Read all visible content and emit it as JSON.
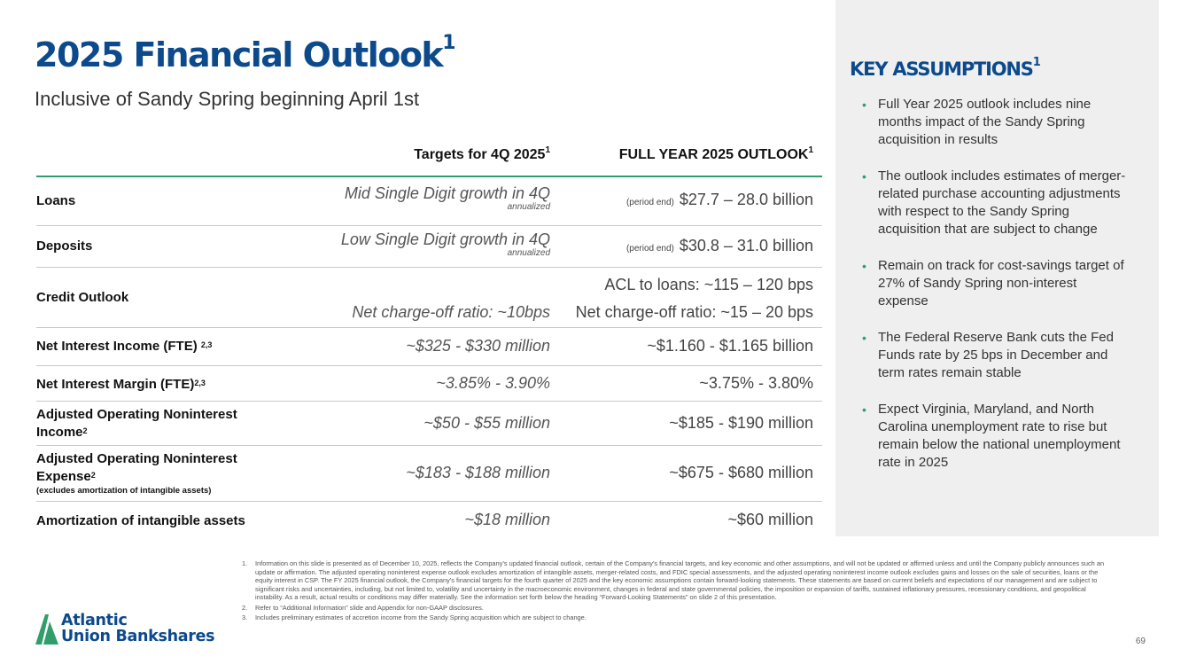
{
  "slide": {
    "title": "2025 Financial Outlook",
    "title_sup": "1",
    "subtitle": "Inclusive of Sandy Spring beginning April 1st",
    "page_number": "69"
  },
  "table": {
    "col_targets": "Targets for 4Q 2025",
    "col_targets_sup": "1",
    "col_full": "FULL YEAR 2025 OUTLOOK",
    "col_full_sup": "1",
    "rows": [
      {
        "label": "Loans",
        "target": "Mid Single Digit growth in 4Q",
        "target_note": "annualized",
        "full_prefix": "(period end)",
        "full": "$27.7 – 28.0 billion"
      },
      {
        "label": "Deposits",
        "target": "Low Single Digit growth in 4Q",
        "target_note": "annualized",
        "full_prefix": "(period end)",
        "full": "$30.8 – 31.0 billion"
      },
      {
        "label": "Credit Outlook",
        "target": "Net charge-off ratio: ~10bps",
        "full_line1": "ACL to loans:  ~115 – 120 bps",
        "full_line2": "Net charge-off ratio: ~15 – 20 bps"
      },
      {
        "label": "Net Interest Income (FTE)",
        "label_sup": "2,3",
        "target": "~$325 - $330 million",
        "full": "~$1.160 - $1.165 billion"
      },
      {
        "label": "Net Interest Margin (FTE)",
        "label_sup": "2,3",
        "target": "~3.85% - 3.90%",
        "full": "~3.75% - 3.80%"
      },
      {
        "label_line1": "Adjusted Operating Noninterest",
        "label_line2": "Income",
        "label_sup": "2",
        "target": "~$50 - $55 million",
        "full": "~$185 - $190 million"
      },
      {
        "label_line1": "Adjusted Operating Noninterest",
        "label_line2": "Expense",
        "label_sup": "2",
        "label_note": "(excludes amortization of intangible assets)",
        "target": "~$183 - $188 million",
        "full": "~$675 - $680 million"
      },
      {
        "label": "Amortization of intangible assets",
        "target": "~$18 million",
        "full": "~$60 million"
      }
    ]
  },
  "sidebar": {
    "title": "KEY ASSUMPTIONS",
    "title_sup": "1",
    "bullet_glyph": "•",
    "bullets": [
      "Full Year 2025 outlook includes nine months impact of the Sandy Spring acquisition in results",
      "The outlook includes estimates of merger-related purchase accounting adjustments with respect to the Sandy Spring acquisition that are subject to change",
      "Remain on track for cost-savings target of 27% of Sandy Spring non-interest expense",
      "The Federal Reserve Bank cuts the Fed Funds rate by 25 bps in December and term rates remain stable",
      "Expect Virginia, Maryland, and North Carolina unemployment rate to rise but remain below the national unemployment rate in 2025"
    ]
  },
  "logo": {
    "line1": "Atlantic",
    "line2": "Union Bankshares"
  },
  "footnotes": [
    {
      "num": "1.",
      "text": "Information on this slide is presented as of December 10, 2025, reflects the Company’s updated financial outlook, certain of the Company’s financial targets, and key economic and other assumptions, and will not be updated or affirmed unless and until the Company publicly announces such an update or affirmation. The adjusted operating noninterest expense outlook excludes amortization of intangible assets, merger-related costs, and FDIC special assessments, and the adjusted operating noninterest income outlook excludes gains and losses on the sale of securities, loans or the equity interest in CSP.  The FY 2025 financial outlook, the Company’s financial targets for the fourth quarter of 2025 and the key economic assumptions contain forward-looking statements. These statements are based on current beliefs and expectations of our management and are subject to significant risks and uncertainties, including, but not limited to, volatility and uncertainty in the macroeconomic environment, changes in federal and state governmental policies, the imposition or expansion of tariffs, sustained inflationary pressures, recessionary conditions, and geopolitical instability.  As a result, actual results or conditions may differ materially.  See the information set forth below the heading “Forward-Looking Statements” on slide 2 of this presentation."
    },
    {
      "num": "2.",
      "text": "Refer to “Additional Information” slide and Appendix for non-GAAP disclosures."
    },
    {
      "num": "3.",
      "text": "Includes preliminary estimates of accretion income from the Sandy Spring acquisition which are subject to change."
    }
  ],
  "colors": {
    "brand_blue": "#0c4a8c",
    "accent_green": "#2f9e6a",
    "sidebar_bg": "#efefef"
  }
}
